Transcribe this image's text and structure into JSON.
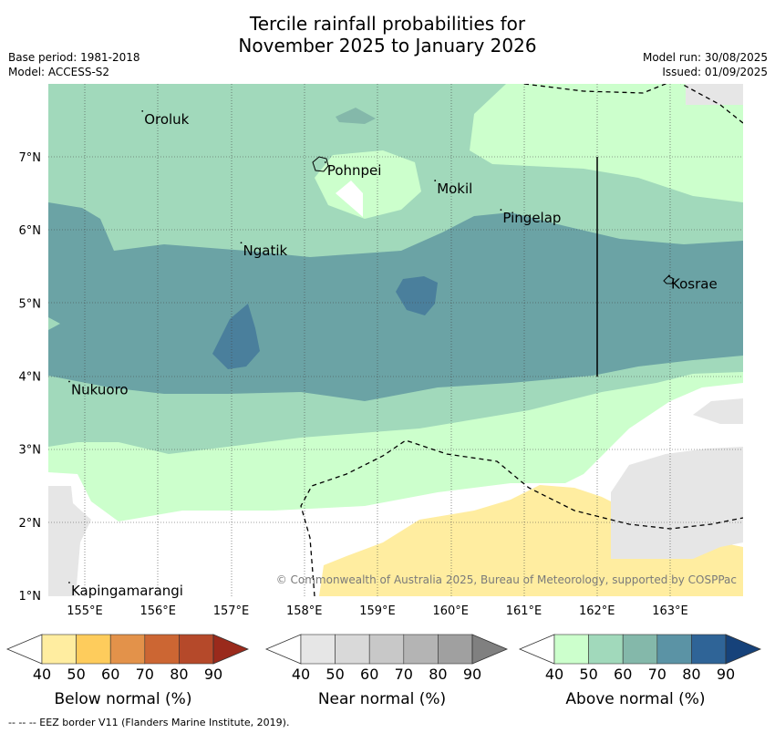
{
  "title_line1": "Tercile rainfall probabilities for",
  "title_line2": "November 2025 to January 2026",
  "base_period": "Base period: 1981-2018",
  "model": "Model: ACCESS-S2",
  "model_run": "Model run: 30/08/2025",
  "issued": "Issued: 01/09/2025",
  "copyright": "© Commonwealth of Australia 2025, Bureau of Meteorology, supported by COSPPac",
  "lon_ticks": [
    "155°E",
    "156°E",
    "157°E",
    "158°E",
    "159°E",
    "160°E",
    "161°E",
    "162°E",
    "163°E"
  ],
  "lat_ticks": [
    "7°N",
    "6°N",
    "5°N",
    "4°N",
    "3°N",
    "2°N",
    "1°N"
  ],
  "places": [
    {
      "name": "Oroluk",
      "lon": 155.8,
      "lat": 7.55
    },
    {
      "name": "Pohnpei",
      "lon": 158.3,
      "lat": 6.85
    },
    {
      "name": "Mokil",
      "lon": 159.8,
      "lat": 6.6
    },
    {
      "name": "Pingelap",
      "lon": 160.7,
      "lat": 6.2
    },
    {
      "name": "Ngatik",
      "lon": 157.15,
      "lat": 5.75
    },
    {
      "name": "Kosrae",
      "lon": 163.0,
      "lat": 5.3
    },
    {
      "name": "Nukuoro",
      "lon": 154.8,
      "lat": 3.85
    },
    {
      "name": "Kapingamarangi",
      "lon": 154.8,
      "lat": 1.1
    }
  ],
  "colorbars": [
    {
      "label": "Below normal (%)",
      "colors": [
        "#ffeda0",
        "#fecc5c",
        "#e3924a",
        "#cc6633",
        "#b5492a",
        "#a33322"
      ],
      "end": "#9a2a1c"
    },
    {
      "label": "Near normal (%)",
      "colors": [
        "#e6e6e6",
        "#d9d9d9",
        "#c8c8c8",
        "#b4b4b4",
        "#a0a0a0",
        "#888888"
      ],
      "end": "#808080"
    },
    {
      "label": "Above normal (%)",
      "colors": [
        "#ccffcc",
        "#a1d9bb",
        "#84b8aa",
        "#5b93a5",
        "#2f6497",
        "#1c4a85"
      ],
      "end": "#16427a"
    }
  ],
  "colorbar_ticks": [
    "40",
    "50",
    "60",
    "70",
    "80",
    "90"
  ],
  "footer": "--  --  -- EEZ border V11 (Flanders Marine Institute, 2019)."
}
